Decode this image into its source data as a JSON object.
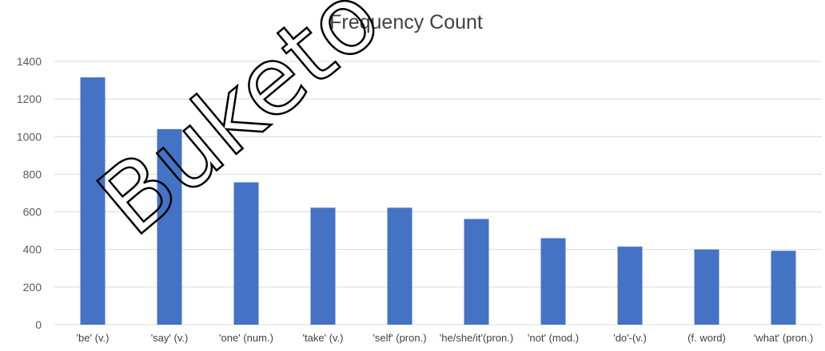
{
  "chart_data": {
    "type": "bar",
    "title": "Frequency Count",
    "xlabel": "",
    "ylabel": "",
    "categories": [
      "'be' (v.)",
      "'say' (v.)",
      "'one' (num.)",
      "'take' (v.)",
      "'self' (pron.)",
      "'he/she/it'(pron.)",
      "'not' (mod.)",
      "'do'-(v.)",
      "(f. word)",
      "'what' (pron.)"
    ],
    "values": [
      1315,
      1040,
      757,
      622,
      622,
      562,
      460,
      415,
      400,
      393
    ],
    "ylim": [
      0,
      1400
    ],
    "yticks": [
      0,
      200,
      400,
      600,
      800,
      1000,
      1200,
      1400
    ],
    "grid": true,
    "bar_color": "#4472C4",
    "grid_color": "#D9D9D9",
    "text_color": "#595959"
  },
  "watermark": {
    "text": "Buketo",
    "color": "#000000"
  }
}
